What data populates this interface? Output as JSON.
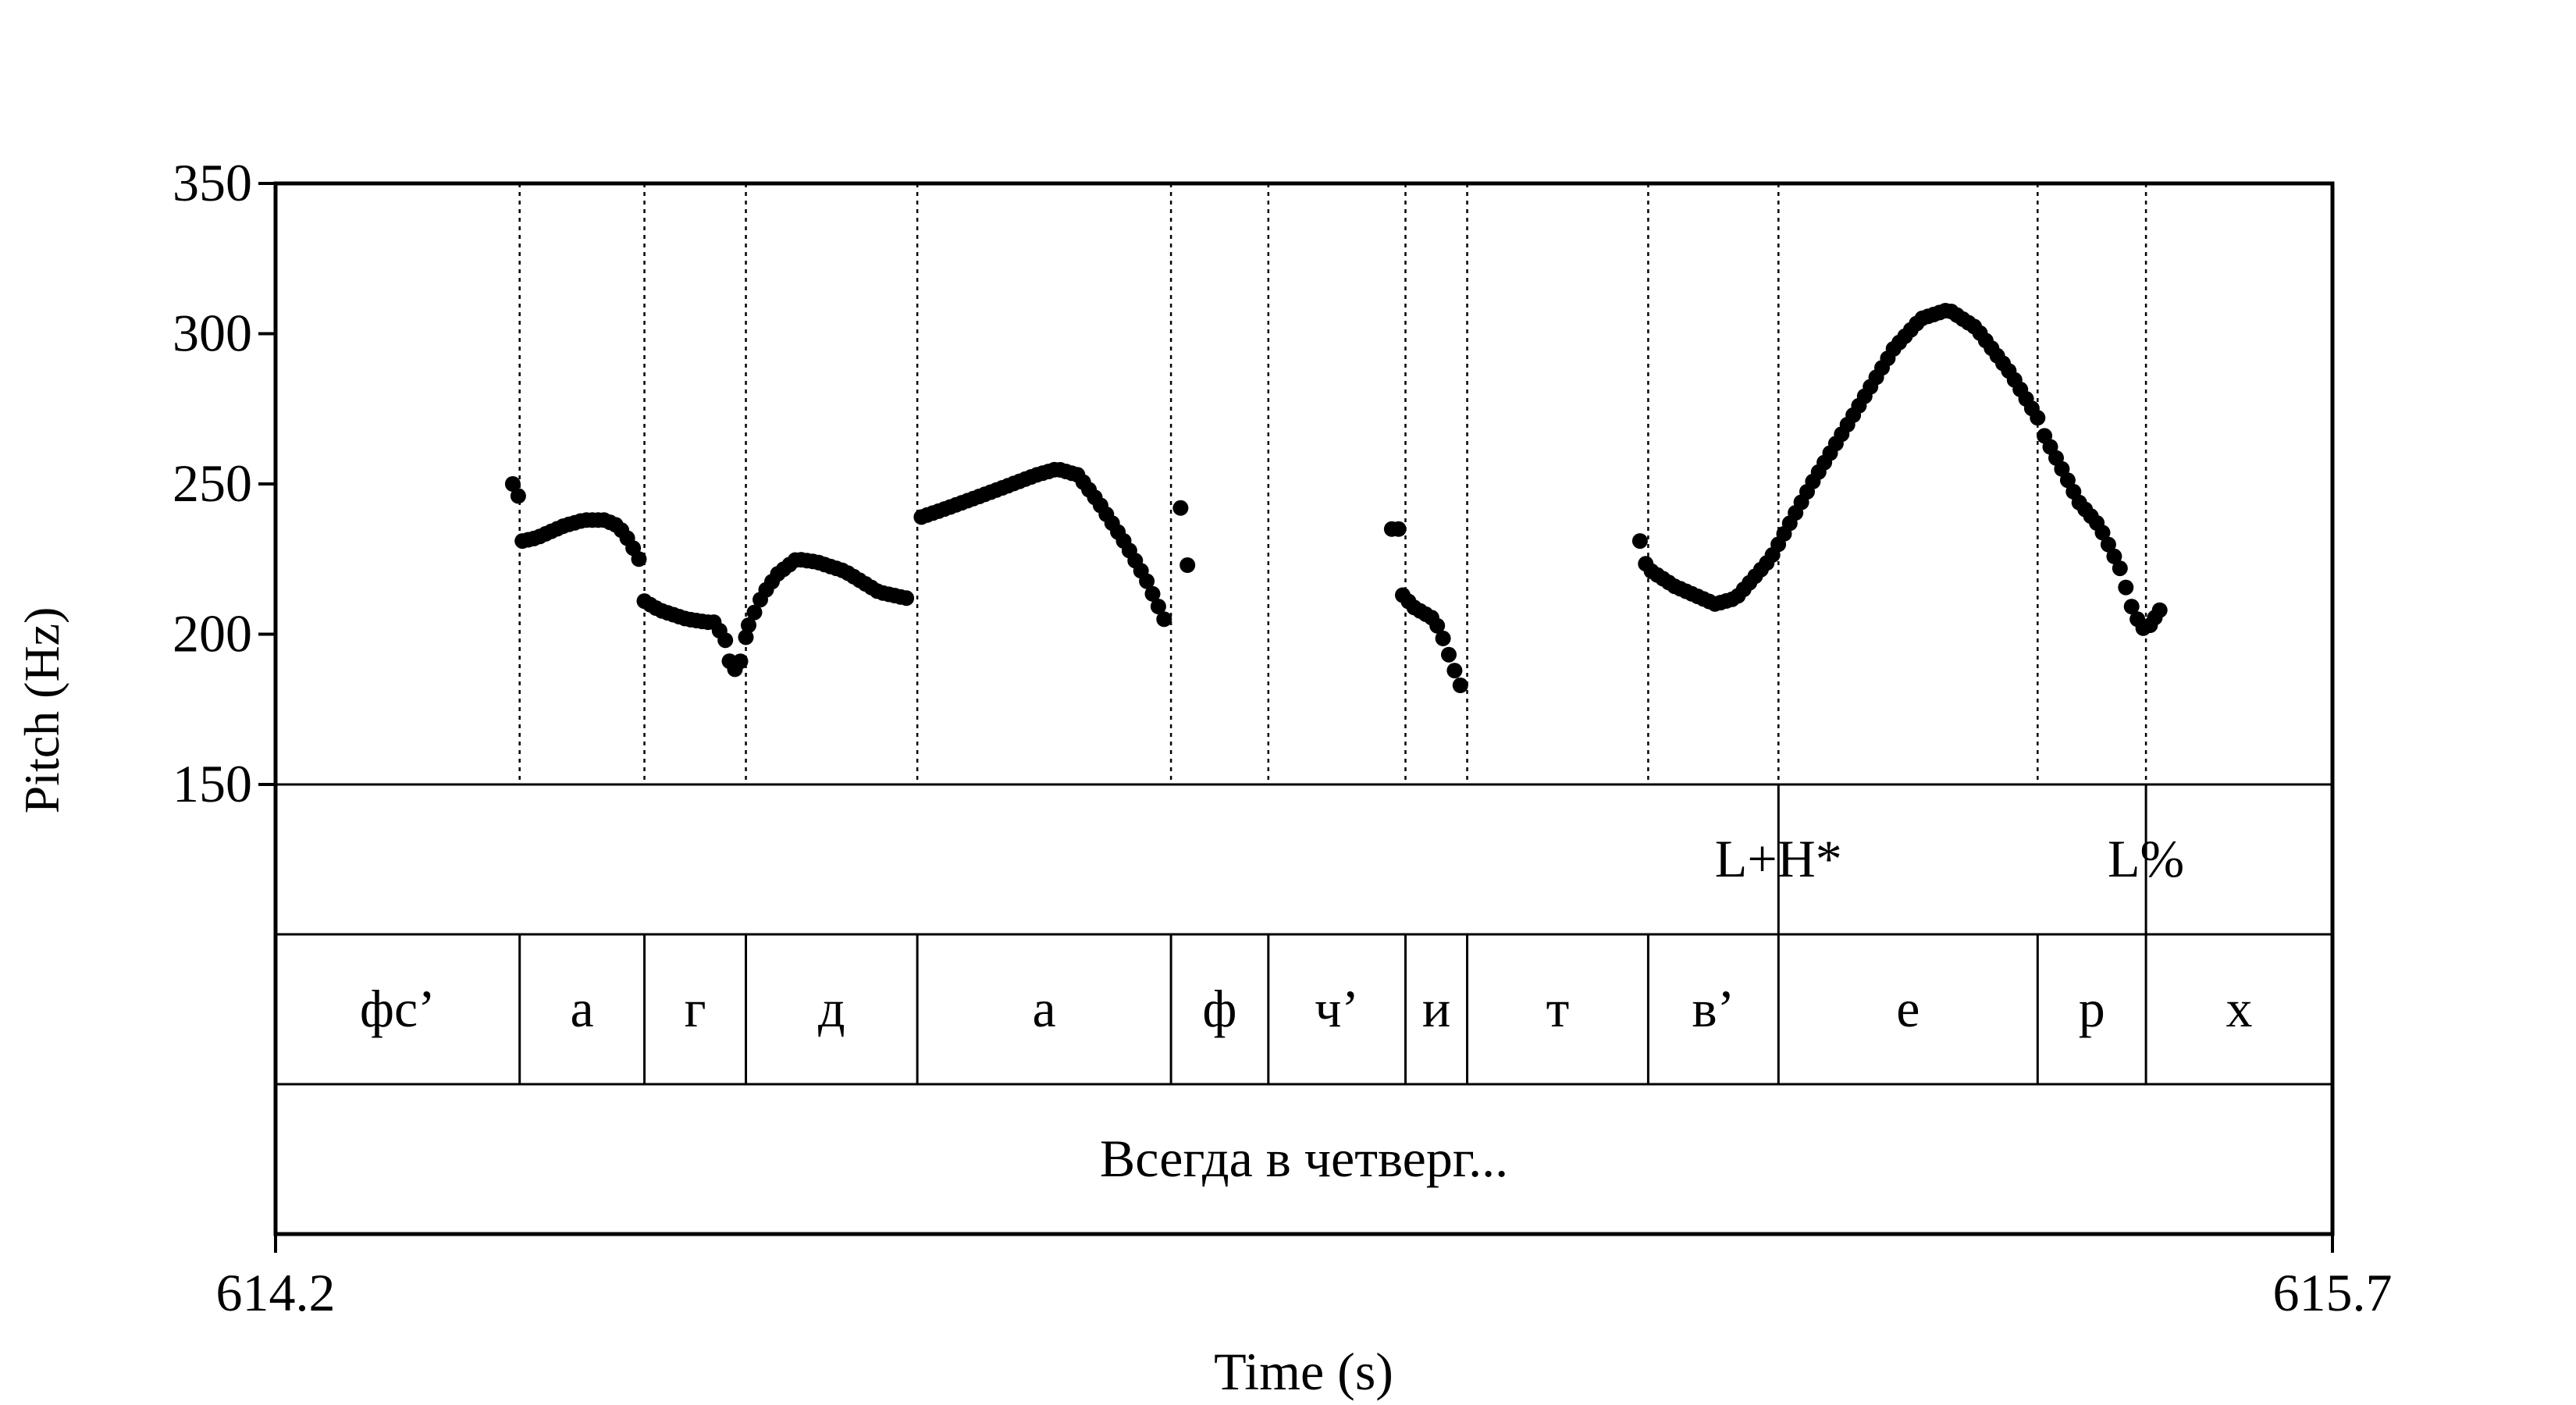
{
  "chart_data": {
    "type": "scatter",
    "xlabel": "Time (s)",
    "ylabel": "Pitch (Hz)",
    "xlim": [
      614.2,
      615.7
    ],
    "ylim": [
      150,
      350
    ],
    "x_ticks": [
      "614.2",
      "615.7"
    ],
    "y_ticks": [
      150,
      200,
      250,
      300,
      350
    ],
    "boundaries": [
      614.378,
      614.469,
      614.543,
      614.668,
      614.853,
      614.924,
      615.024,
      615.069,
      615.201,
      615.296,
      615.485,
      615.564
    ],
    "segments": [
      {
        "label": "фс’",
        "start": 614.2,
        "end": 614.378
      },
      {
        "label": "а",
        "start": 614.378,
        "end": 614.469
      },
      {
        "label": "г",
        "start": 614.469,
        "end": 614.543
      },
      {
        "label": "д",
        "start": 614.543,
        "end": 614.668
      },
      {
        "label": "а",
        "start": 614.668,
        "end": 614.853
      },
      {
        "label": "ф",
        "start": 614.853,
        "end": 614.924
      },
      {
        "label": "ч’",
        "start": 614.924,
        "end": 615.024
      },
      {
        "label": "и",
        "start": 615.024,
        "end": 615.069
      },
      {
        "label": "т",
        "start": 615.069,
        "end": 615.201
      },
      {
        "label": "в’",
        "start": 615.201,
        "end": 615.296
      },
      {
        "label": "е",
        "start": 615.296,
        "end": 615.485
      },
      {
        "label": "р",
        "start": 615.485,
        "end": 615.564
      },
      {
        "label": "х",
        "start": 615.564,
        "end": 615.7
      }
    ],
    "tones": [
      {
        "label": "L+H*",
        "time": 615.296
      },
      {
        "label": "L%",
        "time": 615.564
      }
    ],
    "phrase": {
      "label": "Всегда в четверг...",
      "start": 614.2,
      "end": 615.7
    },
    "pitch_curve": [
      {
        "start": 614.373,
        "end": 614.377,
        "anchors": [
          [
            614.373,
            250
          ],
          [
            614.377,
            246
          ]
        ]
      },
      {
        "start": 614.38,
        "end": 614.465,
        "anchors": [
          [
            614.38,
            231
          ],
          [
            614.39,
            232
          ],
          [
            614.41,
            236
          ],
          [
            614.425,
            238
          ],
          [
            614.44,
            238
          ],
          [
            614.45,
            236
          ],
          [
            614.458,
            231
          ],
          [
            614.465,
            225
          ]
        ]
      },
      {
        "start": 614.469,
        "end": 614.528,
        "anchors": [
          [
            614.469,
            211
          ],
          [
            614.48,
            208
          ],
          [
            614.5,
            205
          ],
          [
            614.515,
            204
          ],
          [
            614.52,
            204
          ],
          [
            614.528,
            198
          ]
        ]
      },
      {
        "start": 614.531,
        "end": 614.543,
        "anchors": [
          [
            614.531,
            191
          ],
          [
            614.537,
            187
          ],
          [
            614.543,
            199
          ]
        ]
      },
      {
        "start": 614.545,
        "end": 614.66,
        "anchors": [
          [
            614.545,
            203
          ],
          [
            614.555,
            213
          ],
          [
            614.566,
            220
          ],
          [
            614.58,
            225
          ],
          [
            614.595,
            224
          ],
          [
            614.615,
            221
          ],
          [
            614.64,
            214
          ],
          [
            614.66,
            212
          ]
        ]
      },
      {
        "start": 614.671,
        "end": 614.848,
        "anchors": [
          [
            614.671,
            239
          ],
          [
            614.69,
            242
          ],
          [
            614.72,
            247
          ],
          [
            614.755,
            253
          ],
          [
            614.77,
            255
          ],
          [
            614.785,
            253
          ],
          [
            614.8,
            244
          ],
          [
            614.82,
            230
          ],
          [
            614.835,
            218
          ],
          [
            614.848,
            205
          ]
        ]
      },
      {
        "start": 614.86,
        "end": 614.865,
        "anchors": [
          [
            614.86,
            242
          ],
          [
            614.865,
            223
          ]
        ]
      },
      {
        "start": 615.014,
        "end": 615.019,
        "anchors": [
          [
            615.014,
            235
          ],
          [
            615.019,
            235
          ]
        ]
      },
      {
        "start": 615.022,
        "end": 615.064,
        "anchors": [
          [
            615.022,
            213
          ],
          [
            615.03,
            209
          ],
          [
            615.045,
            205
          ],
          [
            615.052,
            198
          ],
          [
            615.058,
            190
          ],
          [
            615.064,
            183
          ]
        ]
      },
      {
        "start": 615.195,
        "end": 615.485,
        "anchors": [
          [
            615.195,
            231
          ],
          [
            615.2,
            222
          ],
          [
            615.22,
            216
          ],
          [
            615.24,
            212
          ],
          [
            615.25,
            210
          ],
          [
            615.265,
            212
          ],
          [
            615.29,
            225
          ],
          [
            615.32,
            250
          ],
          [
            615.36,
            280
          ],
          [
            615.38,
            295
          ],
          [
            615.4,
            305
          ],
          [
            615.42,
            308
          ],
          [
            615.44,
            302
          ],
          [
            615.465,
            287
          ],
          [
            615.485,
            272
          ]
        ]
      },
      {
        "start": 615.49,
        "end": 615.562,
        "anchors": [
          [
            615.49,
            266
          ],
          [
            615.505,
            253
          ],
          [
            615.515,
            244
          ],
          [
            615.53,
            236
          ],
          [
            615.545,
            222
          ],
          [
            615.555,
            207
          ],
          [
            615.562,
            202
          ]
        ]
      },
      {
        "start": 615.567,
        "end": 615.574,
        "anchors": [
          [
            615.567,
            203
          ],
          [
            615.574,
            208
          ]
        ]
      }
    ]
  }
}
